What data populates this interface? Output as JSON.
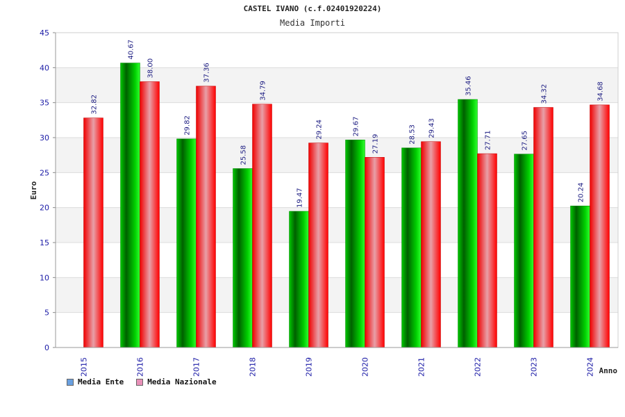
{
  "header": {
    "title": "CASTEL IVANO (c.f.02401920224)",
    "subtitle": "Media Importi"
  },
  "legend": {
    "ente_label": "Media Ente",
    "nazionale_label": "Media Nazionale",
    "ente_color": "#6aa0e0",
    "nazionale_color": "#e890b8"
  },
  "chart_data": {
    "type": "bar",
    "title": "Media Importi",
    "xlabel": "Anno",
    "ylabel": "Euro",
    "ylim": [
      0,
      45
    ],
    "yticks": [
      0,
      5,
      10,
      15,
      20,
      25,
      30,
      35,
      40,
      45
    ],
    "grid": true,
    "categories": [
      "2015",
      "2016",
      "2017",
      "2018",
      "2019",
      "2020",
      "2021",
      "2022",
      "2023",
      "2024"
    ],
    "series": [
      {
        "name": "Media Ente",
        "color": "#00b400",
        "values": [
          null,
          40.67,
          29.82,
          25.58,
          19.47,
          29.67,
          28.53,
          35.46,
          27.65,
          20.24
        ],
        "labels": [
          "",
          "40.67",
          "29.82",
          "25.58",
          "19.47",
          "29.67",
          "28.53",
          "35.46",
          "27.65",
          "20.24"
        ]
      },
      {
        "name": "Media Nazionale",
        "color": "#e60000",
        "values": [
          32.82,
          38.0,
          37.36,
          34.79,
          29.24,
          27.19,
          29.43,
          27.71,
          34.32,
          34.68
        ],
        "labels": [
          "32.82",
          "38.00",
          "37.36",
          "34.79",
          "29.24",
          "27.19",
          "29.43",
          "27.71",
          "34.32",
          "34.68"
        ]
      }
    ]
  }
}
